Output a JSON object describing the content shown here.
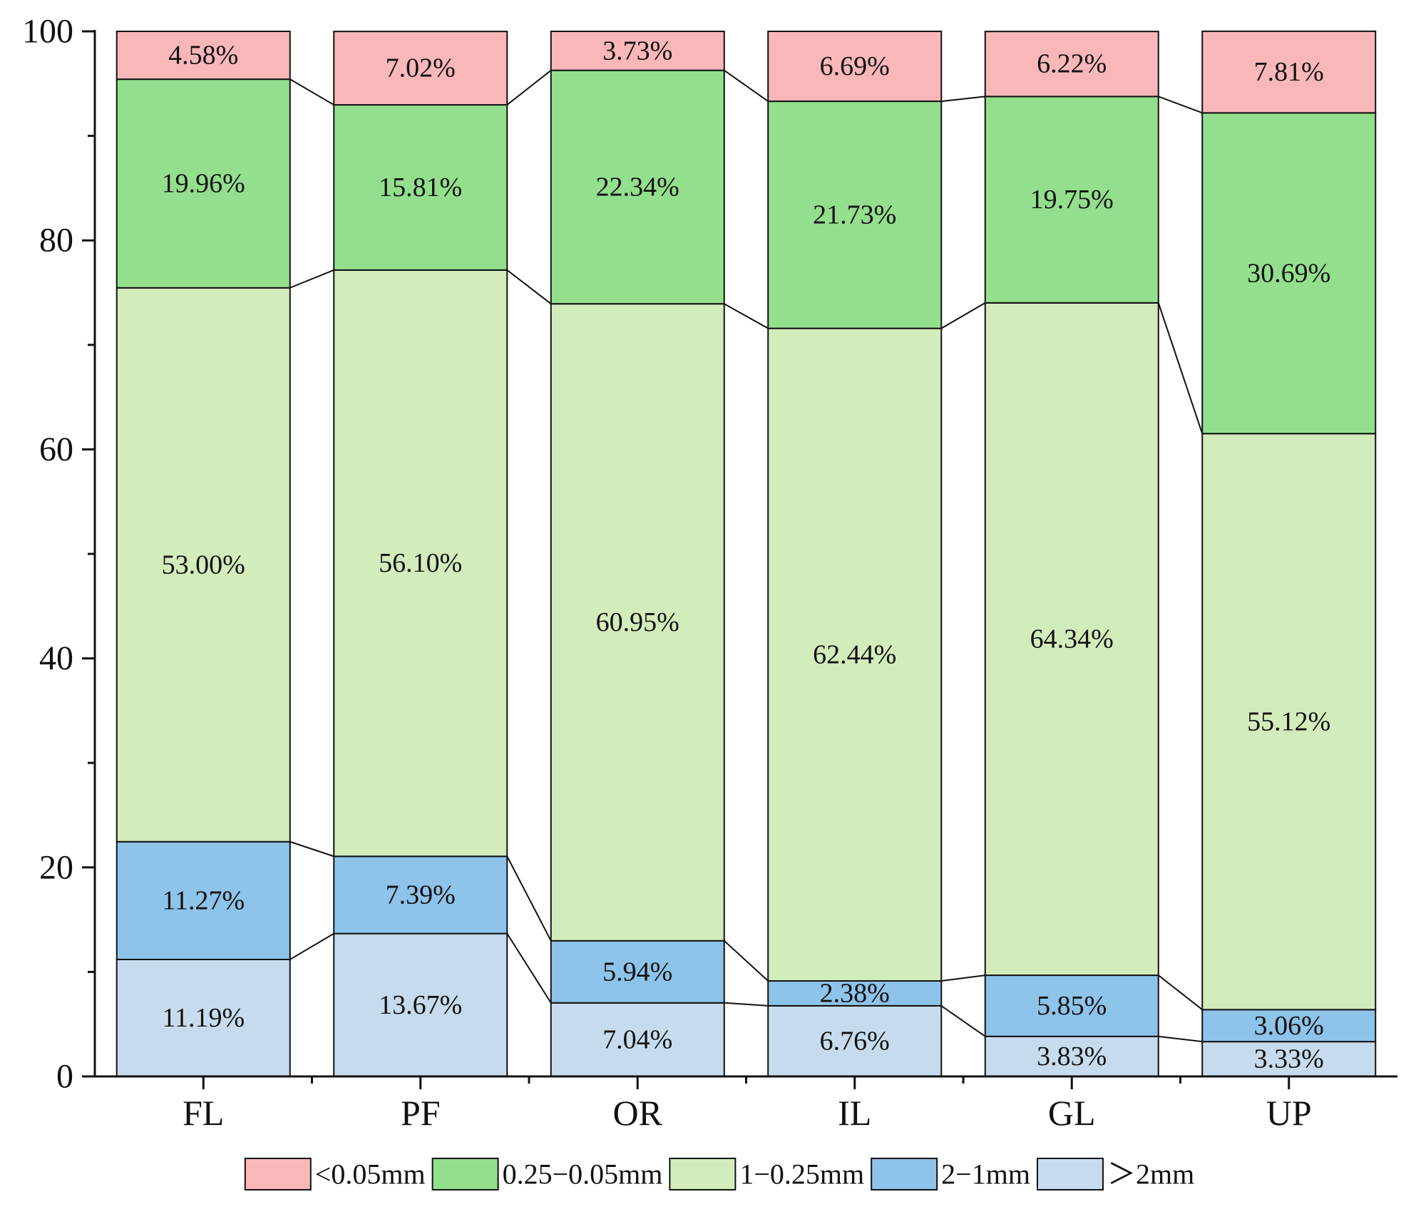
{
  "chart_data": {
    "type": "bar",
    "stacked": true,
    "title": "",
    "xlabel": "",
    "ylabel": "",
    "ylim": [
      0,
      100
    ],
    "yticks": [
      0,
      20,
      40,
      60,
      80,
      100
    ],
    "grid": false,
    "legend_position": "bottom",
    "categories": [
      "FL",
      "PF",
      "OR",
      "IL",
      "GL",
      "UP"
    ],
    "series": [
      {
        "name": ">2mm",
        "legend_label": "＞2mm",
        "color": "#c6dcee",
        "values": [
          11.19,
          13.67,
          7.04,
          6.76,
          3.83,
          3.33
        ],
        "labels": [
          "11.19%",
          "13.67%",
          "7.04%",
          "6.76%",
          "3.83%",
          "3.33%"
        ]
      },
      {
        "name": "2-1mm",
        "legend_label": "2−1mm",
        "color": "#8ec3ea",
        "values": [
          11.27,
          7.39,
          5.94,
          2.38,
          5.85,
          3.06
        ],
        "labels": [
          "11.27%",
          "7.39%",
          "5.94%",
          "2.38%",
          "5.85%",
          "3.06%"
        ]
      },
      {
        "name": "1-0.25mm",
        "legend_label": "1−0.25mm",
        "color": "#d3ecbb",
        "values": [
          53.0,
          56.1,
          60.95,
          62.44,
          64.34,
          55.12
        ],
        "labels": [
          "53.00%",
          "56.10%",
          "60.95%",
          "62.44%",
          "64.34%",
          "55.12%"
        ]
      },
      {
        "name": "0.25-0.05mm",
        "legend_label": "0.25−0.05mm",
        "color": "#93df8d",
        "values": [
          19.96,
          15.81,
          22.34,
          21.73,
          19.75,
          30.69
        ],
        "labels": [
          "19.96%",
          "15.81%",
          "22.34%",
          "21.73%",
          "19.75%",
          "30.69%"
        ]
      },
      {
        "name": "<0.05mm",
        "legend_label": "<0.05mm",
        "color": "#f9b7b9",
        "values": [
          4.58,
          7.02,
          3.73,
          6.69,
          6.22,
          7.81
        ],
        "labels": [
          "4.58%",
          "7.02%",
          "3.73%",
          "6.69%",
          "6.22%",
          "7.81%"
        ]
      }
    ],
    "legend_order": [
      "<0.05mm",
      "0.25-0.05mm",
      "1-0.25mm",
      "2-1mm",
      ">2mm"
    ]
  }
}
